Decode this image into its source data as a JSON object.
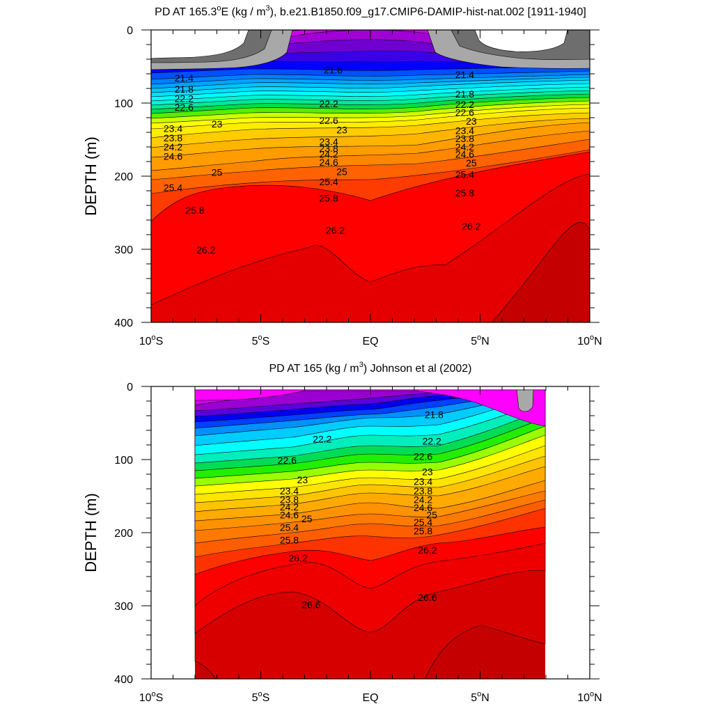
{
  "chart_data": [
    {
      "type": "contour",
      "title_main": "PD AT 165.3",
      "title_deg": "o",
      "title_mid": "E (kg / m",
      "title_sup": "3",
      "title_tail": "), b.e21.B1850.f09_g17.CMIP6-DAMIP-hist-nat.002 [1911-1940]",
      "ylabel": "DEPTH (m)",
      "xlim": [
        -10,
        10
      ],
      "ylim": [
        400,
        0
      ],
      "x_ticks": [
        {
          "value": -10,
          "num": "10",
          "deg": "o",
          "hemi": "S"
        },
        {
          "value": -5,
          "num": "5",
          "deg": "o",
          "hemi": "S"
        },
        {
          "value": 0,
          "num": "EQ",
          "deg": "",
          "hemi": ""
        },
        {
          "value": 5,
          "num": "5",
          "deg": "o",
          "hemi": "N"
        },
        {
          "value": 10,
          "num": "10",
          "deg": "o",
          "hemi": "N"
        }
      ],
      "y_ticks": [
        0,
        100,
        200,
        300,
        400
      ],
      "data_xrange": [
        -10,
        10
      ],
      "contour_levels": [
        20.6,
        20.8,
        21.0,
        21.2,
        21.4,
        21.6,
        21.8,
        22.0,
        22.2,
        22.4,
        22.6,
        22.8,
        23.0,
        23.2,
        23.4,
        23.6,
        23.8,
        24.0,
        24.2,
        24.4,
        24.6,
        24.8,
        25.0,
        25.2,
        25.4,
        25.6,
        25.8,
        26.0,
        26.2,
        26.4,
        26.6
      ],
      "level_colors": [
        "#ffffff",
        "#6e6e6e",
        "#a8a8a8",
        "#ff00ff",
        "#e600f0",
        "#bb00dd",
        "#9600cc",
        "#6b00cc",
        "#3a00e0",
        "#0000ff",
        "#0050ff",
        "#0090ff",
        "#00b8ff",
        "#00dcff",
        "#00ffff",
        "#00f0d0",
        "#00e890",
        "#00dd40",
        "#33ee00",
        "#b0ff00",
        "#ffff00",
        "#ffe000",
        "#ffc000",
        "#ffaa00",
        "#ff9a00",
        "#ff8a00",
        "#ff7400",
        "#ff5800",
        "#ff3300",
        "#ff0000",
        "#dd0000",
        "#c80000"
      ],
      "depth_profile": {
        "x": [
          -10,
          -5,
          -2,
          0,
          2,
          5,
          10
        ],
        "series": [
          {
            "level": 21.4,
            "depth": [
              40,
              48,
              50,
              40,
              48,
              50,
              40
            ]
          },
          {
            "level": 22.2,
            "depth": [
              82,
              100,
              96,
              85,
              96,
              100,
              82
            ]
          },
          {
            "level": 23.0,
            "depth": [
              118,
              140,
              140,
              122,
              140,
              135,
              118
            ]
          },
          {
            "level": 24.2,
            "depth": [
              150,
              168,
              180,
              170,
              180,
              162,
              148
            ]
          },
          {
            "level": 25.0,
            "depth": [
              185,
              195,
              205,
              198,
              205,
              192,
              180
            ]
          },
          {
            "level": 25.8,
            "depth": [
              235,
              248,
              255,
              255,
              245,
              228,
              205
            ]
          },
          {
            "level": 26.2,
            "depth": [
              280,
              275,
              262,
              288,
              262,
              245,
              225
            ]
          },
          {
            "level": 26.6,
            "depth": [
              340,
              325,
              315,
              345,
              320,
              310,
              300
            ]
          }
        ]
      },
      "labels": [
        {
          "text": "21.4",
          "x": -8.5,
          "y": 67
        },
        {
          "text": "21.8",
          "x": -8.5,
          "y": 82
        },
        {
          "text": "22.2",
          "x": -8.5,
          "y": 95
        },
        {
          "text": "22.6",
          "x": -8.5,
          "y": 107
        },
        {
          "text": "23",
          "x": -7.0,
          "y": 130
        },
        {
          "text": "23.4",
          "x": -9.0,
          "y": 136
        },
        {
          "text": "23.8",
          "x": -9.0,
          "y": 149
        },
        {
          "text": "24.2",
          "x": -9.0,
          "y": 161
        },
        {
          "text": "24.6",
          "x": -9.0,
          "y": 174
        },
        {
          "text": "25",
          "x": -7.0,
          "y": 196
        },
        {
          "text": "25.4",
          "x": -9.0,
          "y": 217
        },
        {
          "text": "25.8",
          "x": -8.0,
          "y": 248
        },
        {
          "text": "26.2",
          "x": -7.5,
          "y": 302
        },
        {
          "text": "21.8",
          "x": -1.7,
          "y": 56
        },
        {
          "text": "22.2",
          "x": -1.9,
          "y": 102
        },
        {
          "text": "22.6",
          "x": -1.9,
          "y": 125
        },
        {
          "text": "23",
          "x": -1.3,
          "y": 138
        },
        {
          "text": "23.4",
          "x": -1.9,
          "y": 154
        },
        {
          "text": "23.8",
          "x": -1.9,
          "y": 163
        },
        {
          "text": "24.2",
          "x": -1.9,
          "y": 171
        },
        {
          "text": "24.6",
          "x": -1.9,
          "y": 182
        },
        {
          "text": "25",
          "x": -1.3,
          "y": 195
        },
        {
          "text": "25.4",
          "x": -1.9,
          "y": 209
        },
        {
          "text": "25.8",
          "x": -1.9,
          "y": 231
        },
        {
          "text": "26.2",
          "x": -1.6,
          "y": 275
        },
        {
          "text": "21.4",
          "x": 4.3,
          "y": 62
        },
        {
          "text": "21.8",
          "x": 4.3,
          "y": 89
        },
        {
          "text": "22.2",
          "x": 4.3,
          "y": 103
        },
        {
          "text": "22.6",
          "x": 4.3,
          "y": 114
        },
        {
          "text": "23",
          "x": 4.6,
          "y": 126
        },
        {
          "text": "23.4",
          "x": 4.3,
          "y": 139
        },
        {
          "text": "23.8",
          "x": 4.3,
          "y": 150
        },
        {
          "text": "24.2",
          "x": 4.3,
          "y": 161
        },
        {
          "text": "24.6",
          "x": 4.3,
          "y": 171
        },
        {
          "text": "25",
          "x": 4.6,
          "y": 183
        },
        {
          "text": "25.4",
          "x": 4.3,
          "y": 199
        },
        {
          "text": "25.8",
          "x": 4.3,
          "y": 224
        },
        {
          "text": "26.2",
          "x": 4.6,
          "y": 270
        }
      ]
    },
    {
      "type": "contour",
      "title_main": "PD AT 165 (kg / m",
      "title_sup": "3",
      "title_tail": ") Johnson et al (2002)",
      "ylabel": "DEPTH (m)",
      "xlim": [
        -10,
        10
      ],
      "ylim": [
        400,
        0
      ],
      "x_ticks": [
        {
          "value": -10,
          "num": "10",
          "deg": "o",
          "hemi": "S"
        },
        {
          "value": -5,
          "num": "5",
          "deg": "o",
          "hemi": "S"
        },
        {
          "value": 0,
          "num": "EQ",
          "deg": "",
          "hemi": ""
        },
        {
          "value": 5,
          "num": "5",
          "deg": "o",
          "hemi": "N"
        },
        {
          "value": 10,
          "num": "10",
          "deg": "o",
          "hemi": "N"
        }
      ],
      "y_ticks": [
        0,
        100,
        200,
        300,
        400
      ],
      "data_xrange": [
        -8,
        8
      ],
      "contour_levels": [
        21.0,
        21.2,
        21.4,
        21.6,
        21.8,
        22.0,
        22.2,
        22.4,
        22.6,
        22.8,
        23.0,
        23.2,
        23.4,
        23.6,
        23.8,
        24.0,
        24.2,
        24.4,
        24.6,
        24.8,
        25.0,
        25.2,
        25.4,
        25.6,
        25.8,
        26.0,
        26.2,
        26.4,
        26.6,
        26.8
      ],
      "depth_profile": {
        "x": [
          -8,
          -5,
          -2,
          0,
          2,
          5,
          8
        ],
        "series": [
          {
            "level": 21.8,
            "depth": [
              45,
              35,
              30,
              40,
              30,
              25,
              55
            ]
          },
          {
            "level": 22.2,
            "depth": [
              70,
              75,
              75,
              90,
              75,
              70,
              80
            ]
          },
          {
            "level": 23.0,
            "depth": [
              115,
              125,
              130,
              130,
              125,
              120,
              95
            ]
          },
          {
            "level": 24.2,
            "depth": [
              160,
              165,
              170,
              160,
              170,
              165,
              110
            ]
          },
          {
            "level": 25.0,
            "depth": [
              185,
              185,
              190,
              175,
              190,
              190,
              140
            ]
          },
          {
            "level": 25.8,
            "depth": [
              215,
              215,
              220,
              210,
              220,
              220,
              185
            ]
          },
          {
            "level": 26.2,
            "depth": [
              250,
              240,
              240,
              265,
              240,
              235,
              215
            ]
          },
          {
            "level": 26.6,
            "depth": [
              330,
              305,
              300,
              335,
              300,
              280,
              255
            ]
          }
        ]
      },
      "labels": [
        {
          "text": "21.8",
          "x": 2.9,
          "y": 40
        },
        {
          "text": "22.2",
          "x": -2.2,
          "y": 73
        },
        {
          "text": "22.2",
          "x": 2.8,
          "y": 76
        },
        {
          "text": "22.6",
          "x": -3.8,
          "y": 102
        },
        {
          "text": "22.6",
          "x": 2.4,
          "y": 97
        },
        {
          "text": "23",
          "x": -3.1,
          "y": 129
        },
        {
          "text": "23",
          "x": 2.6,
          "y": 118
        },
        {
          "text": "23.4",
          "x": -3.7,
          "y": 144
        },
        {
          "text": "23.4",
          "x": 2.4,
          "y": 131
        },
        {
          "text": "23.8",
          "x": -3.7,
          "y": 156
        },
        {
          "text": "23.8",
          "x": 2.4,
          "y": 144
        },
        {
          "text": "24.2",
          "x": -3.7,
          "y": 166
        },
        {
          "text": "24.2",
          "x": 2.4,
          "y": 156
        },
        {
          "text": "24.6",
          "x": -3.7,
          "y": 177
        },
        {
          "text": "24.6",
          "x": 2.4,
          "y": 167
        },
        {
          "text": "25",
          "x": -2.9,
          "y": 182
        },
        {
          "text": "25",
          "x": 2.8,
          "y": 177
        },
        {
          "text": "25.4",
          "x": -3.7,
          "y": 194
        },
        {
          "text": "25.4",
          "x": 2.4,
          "y": 187
        },
        {
          "text": "25.8",
          "x": -3.7,
          "y": 211
        },
        {
          "text": "25.8",
          "x": 2.4,
          "y": 199
        },
        {
          "text": "26.2",
          "x": -3.3,
          "y": 236
        },
        {
          "text": "26.2",
          "x": 2.6,
          "y": 225
        },
        {
          "text": "26.6",
          "x": -2.7,
          "y": 300
        },
        {
          "text": "26.6",
          "x": 2.6,
          "y": 290
        }
      ]
    }
  ]
}
